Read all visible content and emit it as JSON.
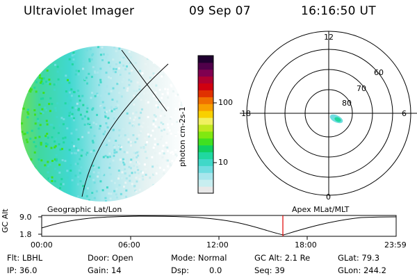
{
  "header": {
    "instrument": "Ultraviolet Imager",
    "date": "09 Sep 07",
    "time": "16:16:50 UT"
  },
  "colorbar": {
    "unit_label": "photon cm-2s-1",
    "ticks": [
      "100",
      "10"
    ],
    "colors": [
      "#e8e8e8",
      "#c8eef0",
      "#a8e6ec",
      "#70dde0",
      "#40d8c8",
      "#20d8a0",
      "#10d060",
      "#40e020",
      "#80e810",
      "#c0e820",
      "#f0f060",
      "#f8d000",
      "#f8a000",
      "#f07000",
      "#e03000",
      "#d00010",
      "#b00030",
      "#800050",
      "#50004a",
      "#200030"
    ]
  },
  "polar_plot": {
    "hour_labels": [
      "12",
      "18",
      "6",
      "0"
    ],
    "lat_labels": [
      "60",
      "70",
      "80"
    ]
  },
  "timeline": {
    "y_label": "GC Alt",
    "y_ticks": [
      "9.0",
      "1.8"
    ],
    "left_title": "Geographic Lat/Lon",
    "right_title": "Apex MLat/MLT",
    "x_ticks": [
      "00:00",
      "06:00",
      "12:00",
      "18:00",
      "23:59"
    ]
  },
  "status": {
    "flt": "Flt: LBHL",
    "ip": "IP: 36.0",
    "door": "Door: Open",
    "gain": "Gain: 14",
    "mode": "Mode: Normal",
    "dsp": "Dsp:",
    "dsp_value": "0.0",
    "gc_alt": "GC Alt: 2.1 Re",
    "seq": "Seq: 39",
    "glat": "GLat:  79.3",
    "glon": "GLon: 244.2"
  }
}
